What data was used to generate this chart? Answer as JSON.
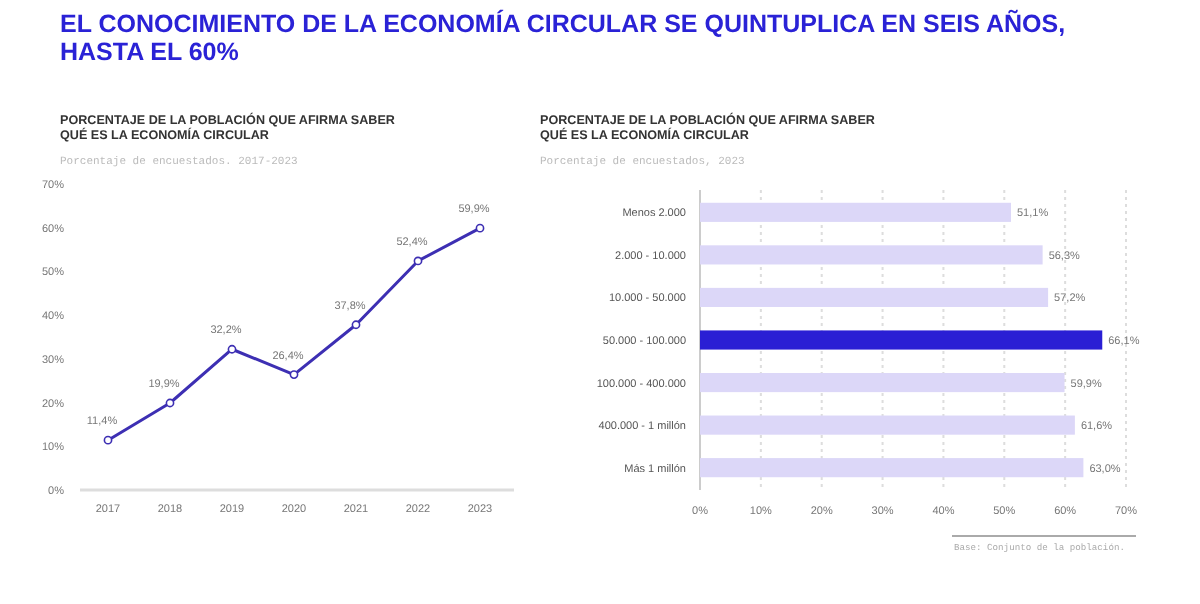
{
  "chart_data": [
    {
      "type": "other",
      "title": "EL CONOCIMIENTO DE LA ECONOMÍA CIRCULAR SE QUINTUPLICA EN SEIS AÑOS, HASTA EL 60%"
    },
    {
      "type": "line",
      "title": "PORCENTAJE DE LA POBLACIÓN QUE AFIRMA SABER QUÉ ES LA ECONOMÍA CIRCULAR",
      "subtitle": "Porcentaje de encuestados. 2017-2023",
      "categories": [
        "2017",
        "2018",
        "2019",
        "2020",
        "2021",
        "2022",
        "2023"
      ],
      "series": [
        {
          "color": "#3d2fb3",
          "values": [
            11.4,
            19.9,
            32.2,
            26.4,
            37.8,
            52.4,
            59.9
          ],
          "value_labels": [
            "11,4%",
            "19,9%",
            "32,2%",
            "26,4%",
            "37,8%",
            "52,4%",
            "59,9%"
          ]
        }
      ],
      "ylim": [
        0,
        70
      ],
      "yticks": [
        {
          "value": 0,
          "label": "0%"
        },
        {
          "value": 10,
          "label": "10%"
        },
        {
          "value": 20,
          "label": "20%"
        },
        {
          "value": 30,
          "label": "30%"
        },
        {
          "value": 40,
          "label": "40%"
        },
        {
          "value": 50,
          "label": "50%"
        },
        {
          "value": 60,
          "label": "60%"
        },
        {
          "value": 70,
          "label": "70%"
        }
      ],
      "marker": "circle",
      "grid": false
    },
    {
      "type": "bar",
      "orientation": "horizontal",
      "title": "PORCENTAJE DE LA POBLACIÓN QUE AFIRMA SABER QUÉ ES LA ECONOMÍA CIRCULAR",
      "subtitle": "Porcentaje de encuestados, 2023",
      "categories": [
        "Menos 2.000",
        "2.000 - 10.000",
        "10.000 - 50.000",
        "50.000 - 100.000",
        "100.000 - 400.000",
        "400.000 - 1 millón",
        "Más  1 millón"
      ],
      "values": [
        51.1,
        56.3,
        57.2,
        66.1,
        59.9,
        61.6,
        63.0
      ],
      "colors": [
        "#dcd7f8",
        "#dcd7f8",
        "#dcd7f8",
        "#2a1fd4",
        "#dcd7f8",
        "#dcd7f8",
        "#dcd7f8"
      ],
      "value_labels": [
        "51,1%",
        "56,3%",
        "57,2%",
        "66,1%",
        "59,9%",
        "61,6%",
        "63,0%"
      ],
      "xlim": [
        0,
        70
      ],
      "xticks": [
        {
          "value": 0,
          "label": "0%"
        },
        {
          "value": 10,
          "label": "10%"
        },
        {
          "value": 20,
          "label": "20%"
        },
        {
          "value": 30,
          "label": "30%"
        },
        {
          "value": 40,
          "label": "40%"
        },
        {
          "value": 50,
          "label": "50%"
        },
        {
          "value": 60,
          "label": "60%"
        },
        {
          "value": 70,
          "label": "70%"
        }
      ],
      "grid": "x",
      "annotations": [
        "Base: Conjunto de la población."
      ]
    }
  ]
}
